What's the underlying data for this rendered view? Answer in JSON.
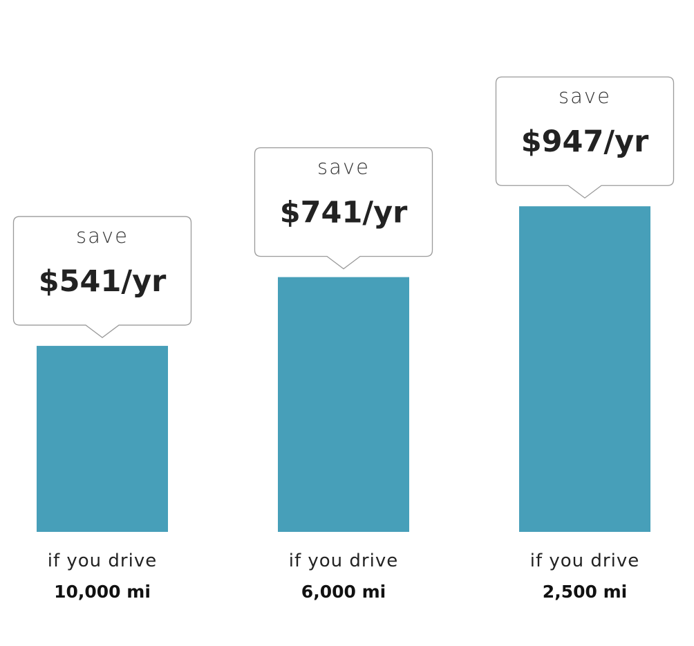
{
  "chart_data": {
    "type": "bar",
    "categories": [
      "10,000 mi",
      "6,000 mi",
      "2,500 mi"
    ],
    "category_prefix": "if you drive",
    "values": [
      541,
      741,
      947
    ],
    "value_labels": [
      "$541/yr",
      "$741/yr",
      "$947/yr"
    ],
    "callout_prefix": "save",
    "ylim": [
      0,
      1040
    ],
    "grid": false,
    "bar_color": "#479fb9",
    "callout_border_color": "#9a9a9a"
  }
}
